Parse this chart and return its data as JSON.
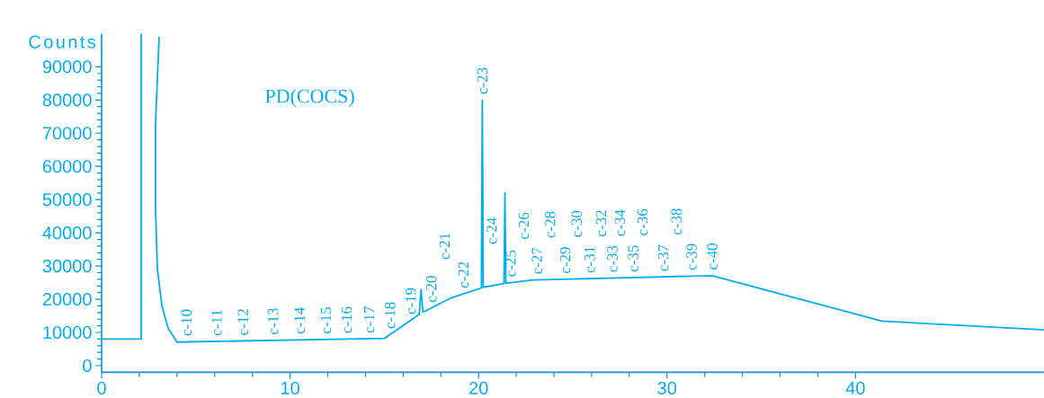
{
  "chart_data": {
    "type": "line",
    "title": "PD(COCS)",
    "ylabel": "Counts",
    "color": "#00aeef",
    "x": [
      0,
      2.1,
      2.1,
      2.6,
      3.05,
      2.86,
      2.86,
      2.96,
      3.2,
      3.53,
      4.0,
      15.0,
      16.85,
      16.95,
      17.05,
      18.5,
      20.05,
      20.15,
      20.2,
      20.25,
      21.35,
      21.4,
      21.45,
      21.7,
      22.9,
      32.4,
      41.4,
      50.0
    ],
    "values": [
      8000,
      8000,
      100000,
      null,
      99000,
      73000,
      47000,
      29000,
      18000,
      11300,
      7100,
      8200,
      15400,
      22900,
      16100,
      20300,
      23200,
      23400,
      80000,
      23600,
      24700,
      52000,
      24800,
      25000,
      25800,
      27100,
      13400,
      10800
    ],
    "xlim": [
      0,
      50
    ],
    "ylim": [
      -2000,
      100000
    ],
    "xticks": [
      0,
      10,
      20,
      30,
      40
    ],
    "yticks": [
      0,
      10000,
      20000,
      30000,
      40000,
      50000,
      60000,
      70000,
      80000,
      90000
    ],
    "marker": "none",
    "line_style": "solid",
    "grid": false,
    "annotations": [
      {
        "text": "c-10",
        "x": 4.5,
        "y": 7200
      },
      {
        "text": "c-11",
        "x": 6.1,
        "y": 7300
      },
      {
        "text": "c-12",
        "x": 7.5,
        "y": 7400
      },
      {
        "text": "c-13",
        "x": 9.1,
        "y": 7600
      },
      {
        "text": "c-14",
        "x": 10.5,
        "y": 7800
      },
      {
        "text": "c-15",
        "x": 11.9,
        "y": 7900
      },
      {
        "text": "c-16",
        "x": 13.0,
        "y": 8000
      },
      {
        "text": "c-17",
        "x": 14.2,
        "y": 8100
      },
      {
        "text": "c-18",
        "x": 15.3,
        "y": 9400
      },
      {
        "text": "c-19",
        "x": 16.4,
        "y": 13700
      },
      {
        "text": "c-20",
        "x": 17.5,
        "y": 17300
      },
      {
        "text": "c-21",
        "x": 18.2,
        "y": 19400
      },
      {
        "text": "c-22",
        "x": 19.2,
        "y": 21600
      },
      {
        "text": "c-23",
        "x": 20.2,
        "y": 80000
      },
      {
        "text": "c-24",
        "x": 20.7,
        "y": 24000
      },
      {
        "text": "c-25",
        "x": 21.7,
        "y": 25000
      },
      {
        "text": "c-26",
        "x": 22.4,
        "y": 25500
      },
      {
        "text": "c-27",
        "x": 23.1,
        "y": 25800
      },
      {
        "text": "c-28",
        "x": 23.8,
        "y": 25900
      },
      {
        "text": "c-29",
        "x": 24.6,
        "y": 26000
      },
      {
        "text": "c-30",
        "x": 25.2,
        "y": 26100
      },
      {
        "text": "c-31",
        "x": 25.9,
        "y": 26200
      },
      {
        "text": "c-32",
        "x": 26.5,
        "y": 26300
      },
      {
        "text": "c-33",
        "x": 27.1,
        "y": 26400
      },
      {
        "text": "c-34",
        "x": 27.5,
        "y": 26400
      },
      {
        "text": "c-35",
        "x": 28.2,
        "y": 26500
      },
      {
        "text": "c-36",
        "x": 28.7,
        "y": 26600
      },
      {
        "text": "c-37",
        "x": 29.8,
        "y": 26700
      },
      {
        "text": "c-38",
        "x": 30.5,
        "y": 26800
      },
      {
        "text": "c-39",
        "x": 31.3,
        "y": 27000
      },
      {
        "text": "c-40",
        "x": 32.4,
        "y": 27100
      }
    ]
  }
}
